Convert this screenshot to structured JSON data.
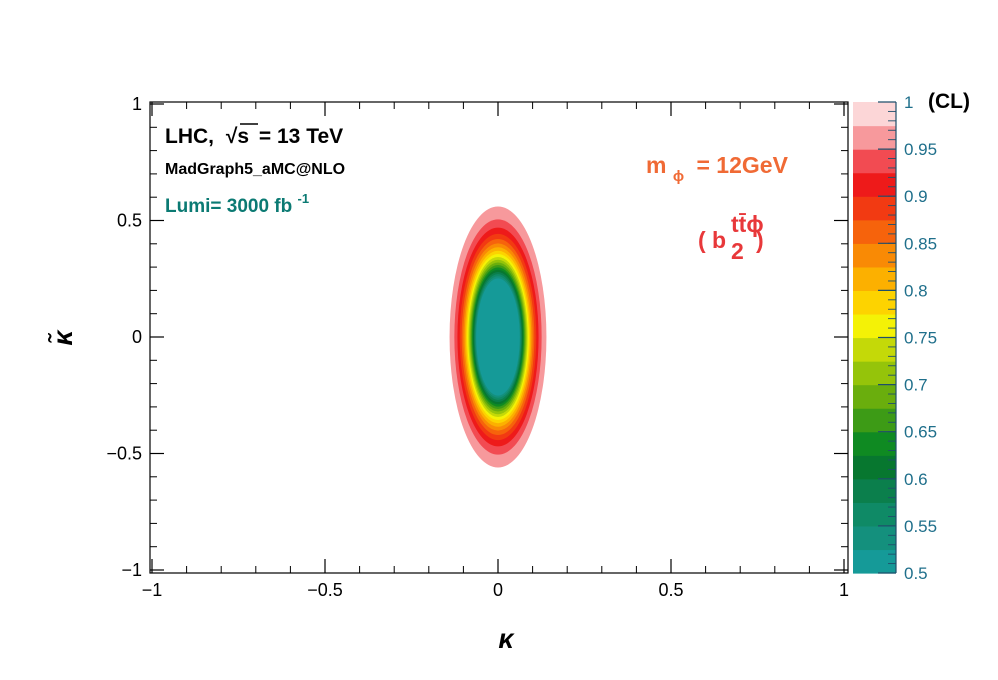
{
  "chart_data": {
    "type": "heatmap",
    "title": "",
    "xlabel": "κ",
    "ylabel": "κ̃",
    "xlim": [
      -1,
      1
    ],
    "ylim": [
      -1,
      1
    ],
    "xticks": [
      {
        "value": -1,
        "label": "−1"
      },
      {
        "value": -0.5,
        "label": "−0.5"
      },
      {
        "value": 0,
        "label": "0"
      },
      {
        "value": 0.5,
        "label": "0.5"
      },
      {
        "value": 1,
        "label": "1"
      }
    ],
    "yticks": [
      {
        "value": -1,
        "label": "−1"
      },
      {
        "value": -0.5,
        "label": "−0.5"
      },
      {
        "value": 0,
        "label": "0"
      },
      {
        "value": 0.5,
        "label": "0.5"
      },
      {
        "value": 1,
        "label": "1"
      }
    ],
    "contour": {
      "center": [
        0,
        0
      ],
      "kappa_half_width_at_cl_max": 0.14,
      "kappa_tilde_half_height_at_cl_max": 0.56,
      "cl_min": 0.5,
      "cl_max": 0.975,
      "cl_step": 0.025
    },
    "colorbar": {
      "label": "(CL)",
      "range": [
        0.5,
        1
      ],
      "ticks": [
        {
          "value": 1,
          "label": "1"
        },
        {
          "value": 0.95,
          "label": "0.95"
        },
        {
          "value": 0.9,
          "label": "0.9"
        },
        {
          "value": 0.85,
          "label": "0.85"
        },
        {
          "value": 0.8,
          "label": "0.8"
        },
        {
          "value": 0.75,
          "label": "0.75"
        },
        {
          "value": 0.7,
          "label": "0.7"
        },
        {
          "value": 0.65,
          "label": "0.65"
        },
        {
          "value": 0.6,
          "label": "0.6"
        },
        {
          "value": 0.55,
          "label": "0.55"
        },
        {
          "value": 0.5,
          "label": "0.5"
        }
      ],
      "bands": [
        {
          "from": 0.5,
          "to": 0.525,
          "color": "#159a98"
        },
        {
          "from": 0.525,
          "to": 0.55,
          "color": "#14907d"
        },
        {
          "from": 0.55,
          "to": 0.575,
          "color": "#0f8a66"
        },
        {
          "from": 0.575,
          "to": 0.6,
          "color": "#0b7f4c"
        },
        {
          "from": 0.6,
          "to": 0.625,
          "color": "#07772f"
        },
        {
          "from": 0.625,
          "to": 0.65,
          "color": "#0f8a22"
        },
        {
          "from": 0.65,
          "to": 0.675,
          "color": "#3d9b16"
        },
        {
          "from": 0.675,
          "to": 0.7,
          "color": "#6aae0d"
        },
        {
          "from": 0.7,
          "to": 0.725,
          "color": "#95c40a"
        },
        {
          "from": 0.725,
          "to": 0.75,
          "color": "#c4d908"
        },
        {
          "from": 0.75,
          "to": 0.775,
          "color": "#f4f206"
        },
        {
          "from": 0.775,
          "to": 0.8,
          "color": "#fdd300"
        },
        {
          "from": 0.8,
          "to": 0.825,
          "color": "#fcb000"
        },
        {
          "from": 0.825,
          "to": 0.85,
          "color": "#f98a05"
        },
        {
          "from": 0.85,
          "to": 0.875,
          "color": "#f6630c"
        },
        {
          "from": 0.875,
          "to": 0.9,
          "color": "#f23a12"
        },
        {
          "from": 0.9,
          "to": 0.925,
          "color": "#ee1a1a"
        },
        {
          "from": 0.925,
          "to": 0.95,
          "color": "#f24b52"
        },
        {
          "from": 0.95,
          "to": 0.975,
          "color": "#f7999c"
        },
        {
          "from": 0.975,
          "to": 1.0,
          "color": "#fcd6d7"
        }
      ]
    },
    "annotations": {
      "collider": "LHC,",
      "sqrt_s": "√s",
      "energy": "= 13 TeV",
      "generator": "MadGraph5_aMC@NLO",
      "lumi_text": "Lumi= 3000 fb",
      "lumi_sup": "-1",
      "mass_m": "m",
      "mass_sub": "ϕ",
      "mass_value": "= 12GeV",
      "coupling_open": "( b",
      "coupling_sub": "2",
      "coupling_sup": "tt̄ϕ",
      "coupling_close": ")"
    }
  }
}
